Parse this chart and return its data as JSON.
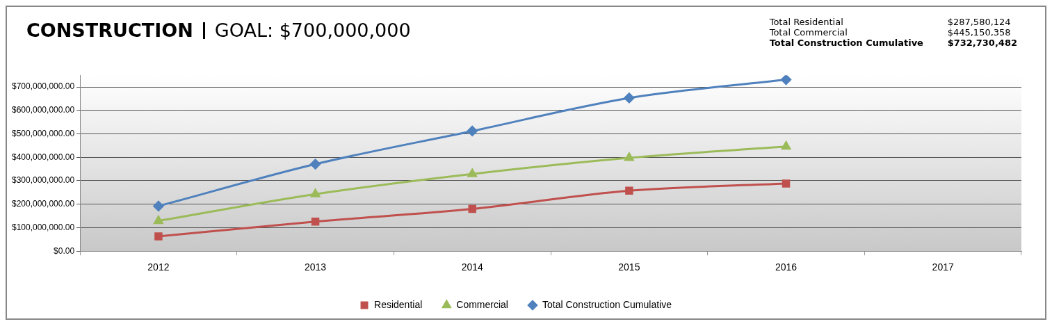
{
  "chart_data": {
    "type": "line",
    "title": "CONSTRUCTION",
    "subtitle": "GOAL: $700,000,000",
    "annotations": [
      "Total Residential",
      "$287,580,124",
      "Total Commercial",
      "$445,150,358",
      "Total Construction Cumulative",
      "$732,730,482"
    ],
    "categories": [
      "2012",
      "2013",
      "2014",
      "2015",
      "2016",
      "2017"
    ],
    "series": [
      {
        "name": "Residential",
        "color": "#c0504d",
        "marker": "square",
        "values": [
          63000000,
          126000000,
          180000000,
          258000000,
          288000000,
          null
        ]
      },
      {
        "name": "Commercial",
        "color": "#9bbb59",
        "marker": "triangle",
        "values": [
          129000000,
          243000000,
          329000000,
          398000000,
          446000000,
          null
        ]
      },
      {
        "name": "Total Construction Cumulative",
        "color": "#4f81bd",
        "marker": "diamond",
        "values": [
          192000000,
          371000000,
          512000000,
          653000000,
          731000000,
          null
        ]
      }
    ],
    "ylim": [
      0,
      750000000
    ],
    "yticks": [
      {
        "value": 0,
        "label": "$0.00"
      },
      {
        "value": 100000000,
        "label": "$100,000,000.00"
      },
      {
        "value": 200000000,
        "label": "$200,000,000.00"
      },
      {
        "value": 300000000,
        "label": "$300,000,000.00"
      },
      {
        "value": 400000000,
        "label": "$400,000,000.00"
      },
      {
        "value": 500000000,
        "label": "$500,000,000.00"
      },
      {
        "value": 600000000,
        "label": "$600,000,000.00"
      },
      {
        "value": 700000000,
        "label": "$700,000,000.00"
      }
    ],
    "grid": "y",
    "legend": "bottom"
  }
}
